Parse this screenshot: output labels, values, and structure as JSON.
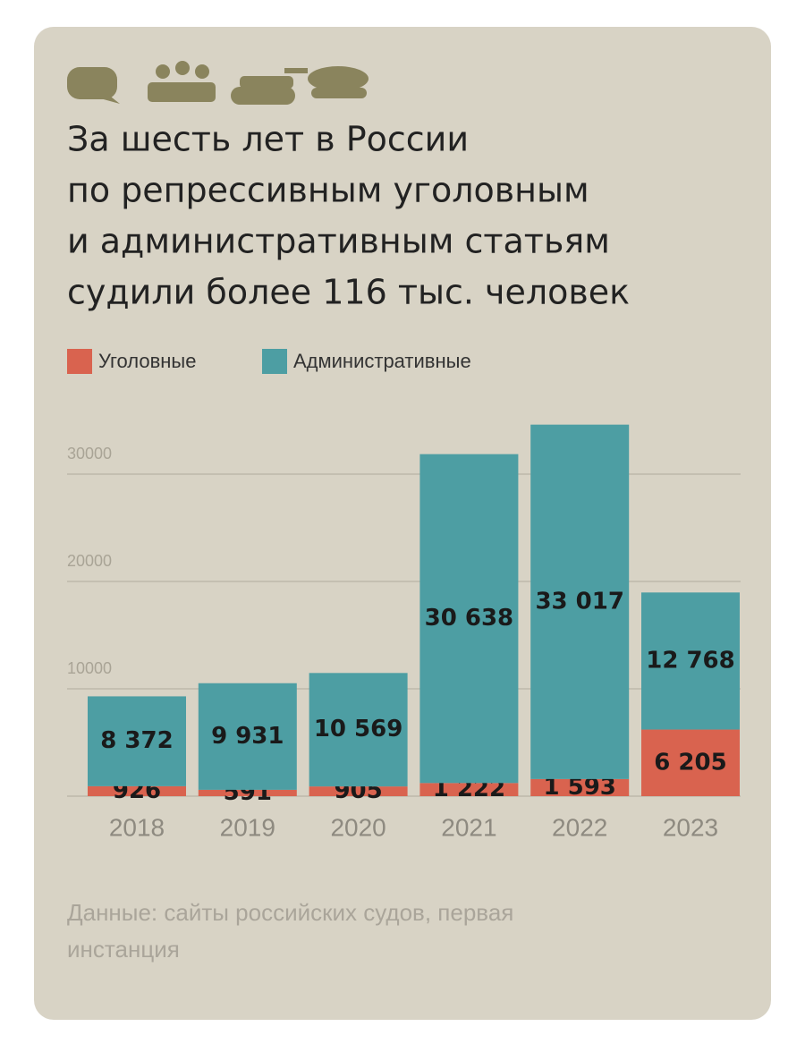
{
  "chart_data": {
    "type": "stacked-bar",
    "title": [
      "За шесть лет в России",
      "по репрессивным уголовным",
      "и административным статьям",
      "судили более 116 тыс. человек"
    ],
    "categories": [
      "2018",
      "2019",
      "2020",
      "2021",
      "2022",
      "2023"
    ],
    "series": [
      {
        "name": "Уголовные",
        "color": "#d9634f",
        "values": [
          926,
          591,
          905,
          1222,
          1593,
          6205
        ],
        "value_labels": [
          "926",
          "591",
          "905",
          "1 222",
          "1 593",
          "6 205"
        ]
      },
      {
        "name": "Административные",
        "color": "#4d9ea3",
        "values": [
          8372,
          9931,
          10569,
          30638,
          33017,
          12768
        ],
        "value_labels": [
          "8 372",
          "9 931",
          "10 569",
          "30 638",
          "33 017",
          "12 768"
        ]
      }
    ],
    "ylim": [
      0,
      35000
    ],
    "yticks": [
      10000,
      20000,
      30000
    ],
    "grid": true,
    "source": [
      "Данные: сайты российских судов, первая",
      "инстанция"
    ]
  }
}
